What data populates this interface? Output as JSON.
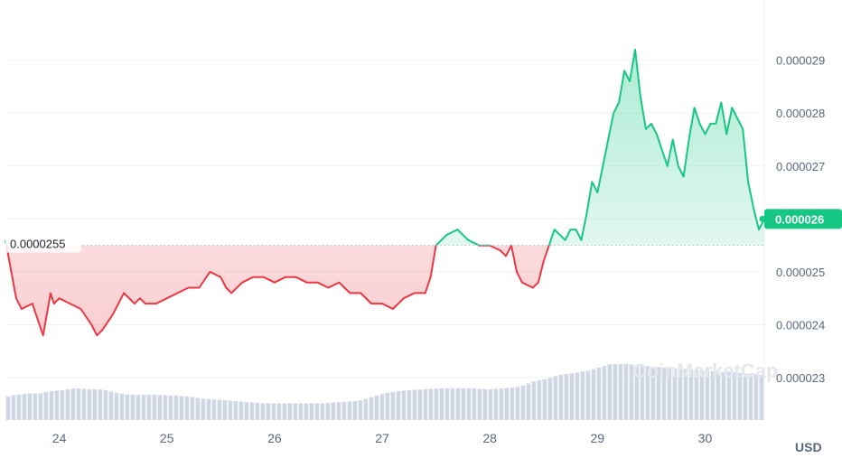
{
  "chart_data": {
    "type": "area",
    "xlabel": "",
    "ylabel": "",
    "unit_label": "USD",
    "watermark": "CoinMarketCap",
    "categories": [
      "24",
      "25",
      "26",
      "27",
      "28",
      "29",
      "30"
    ],
    "x_range": [
      23.5,
      30.55
    ],
    "y_ticks": [
      "0.000023",
      "0.000024",
      "0.000025",
      "0.000026",
      "0.000027",
      "0.000028",
      "0.000029"
    ],
    "y_tick_values": [
      2.3e-05,
      2.4e-05,
      2.5e-05,
      2.6e-05,
      2.7e-05,
      2.8e-05,
      2.9e-05
    ],
    "ylim": [
      2.22e-05,
      3e-05
    ],
    "reference_line": {
      "value": 2.55e-05,
      "label": "0.0000255"
    },
    "current_price": {
      "value": 2.6e-05,
      "label": "0.000026"
    },
    "grid": true,
    "colors": {
      "up": "#16c784",
      "down": "#ea3943",
      "volume": "#cfd6e4",
      "grid": "#eff2f5"
    },
    "series": [
      {
        "x": [
          23.5,
          23.6,
          23.65,
          23.75,
          23.85,
          23.92,
          23.95,
          24.0,
          24.1,
          24.2,
          24.3,
          24.35,
          24.4,
          24.5,
          24.6,
          24.7,
          24.75,
          24.8,
          24.9,
          25.0,
          25.1,
          25.2,
          25.3,
          25.4,
          25.5,
          25.55,
          25.6,
          25.7,
          25.8,
          25.9,
          26.0,
          26.1,
          26.2,
          26.3,
          26.4,
          26.5,
          26.6,
          26.7,
          26.8,
          26.9,
          27.0,
          27.1,
          27.2,
          27.3,
          27.4,
          27.45,
          27.5,
          27.6,
          27.7,
          27.8,
          27.9,
          28.0,
          28.1,
          28.15,
          28.2,
          28.25,
          28.3,
          28.4,
          28.45,
          28.5,
          28.55,
          28.6,
          28.65,
          28.7,
          28.75,
          28.8,
          28.85,
          28.9,
          28.95,
          29.0,
          29.05,
          29.1,
          29.15,
          29.2,
          29.25,
          29.3,
          29.35,
          29.4,
          29.45,
          29.5,
          29.55,
          29.6,
          29.65,
          29.7,
          29.75,
          29.8,
          29.85,
          29.9,
          29.95,
          30.0,
          30.05,
          30.1,
          30.15,
          30.2,
          30.25,
          30.3,
          30.35,
          30.4,
          30.45,
          30.5,
          30.55
        ],
        "values": [
          2.56e-05,
          2.45e-05,
          2.43e-05,
          2.44e-05,
          2.38e-05,
          2.46e-05,
          2.44e-05,
          2.45e-05,
          2.44e-05,
          2.43e-05,
          2.4e-05,
          2.38e-05,
          2.39e-05,
          2.42e-05,
          2.46e-05,
          2.44e-05,
          2.45e-05,
          2.44e-05,
          2.44e-05,
          2.45e-05,
          2.46e-05,
          2.47e-05,
          2.47e-05,
          2.5e-05,
          2.49e-05,
          2.47e-05,
          2.46e-05,
          2.48e-05,
          2.49e-05,
          2.49e-05,
          2.48e-05,
          2.49e-05,
          2.49e-05,
          2.48e-05,
          2.48e-05,
          2.47e-05,
          2.48e-05,
          2.46e-05,
          2.46e-05,
          2.44e-05,
          2.44e-05,
          2.43e-05,
          2.45e-05,
          2.46e-05,
          2.46e-05,
          2.49e-05,
          2.55e-05,
          2.57e-05,
          2.58e-05,
          2.56e-05,
          2.55e-05,
          2.55e-05,
          2.54e-05,
          2.53e-05,
          2.55e-05,
          2.5e-05,
          2.48e-05,
          2.47e-05,
          2.48e-05,
          2.52e-05,
          2.55e-05,
          2.58e-05,
          2.57e-05,
          2.56e-05,
          2.58e-05,
          2.58e-05,
          2.56e-05,
          2.61e-05,
          2.67e-05,
          2.65e-05,
          2.7e-05,
          2.75e-05,
          2.8e-05,
          2.82e-05,
          2.88e-05,
          2.86e-05,
          2.92e-05,
          2.83e-05,
          2.77e-05,
          2.78e-05,
          2.76e-05,
          2.73e-05,
          2.7e-05,
          2.75e-05,
          2.7e-05,
          2.68e-05,
          2.75e-05,
          2.81e-05,
          2.78e-05,
          2.76e-05,
          2.78e-05,
          2.78e-05,
          2.82e-05,
          2.76e-05,
          2.81e-05,
          2.79e-05,
          2.77e-05,
          2.67e-05,
          2.62e-05,
          2.58e-05,
          2.6e-05
        ]
      }
    ],
    "volume_values": [
      0.42,
      0.45,
      0.46,
      0.48,
      0.47,
      0.5,
      0.52,
      0.53,
      0.55,
      0.57,
      0.56,
      0.55,
      0.55,
      0.53,
      0.5,
      0.47,
      0.45,
      0.45,
      0.45,
      0.45,
      0.45,
      0.44,
      0.44,
      0.43,
      0.42,
      0.4,
      0.38,
      0.37,
      0.36,
      0.35,
      0.34,
      0.33,
      0.32,
      0.31,
      0.3,
      0.3,
      0.3,
      0.3,
      0.3,
      0.3,
      0.3,
      0.3,
      0.3,
      0.31,
      0.32,
      0.33,
      0.34,
      0.36,
      0.4,
      0.44,
      0.48,
      0.5,
      0.52,
      0.53,
      0.54,
      0.55,
      0.56,
      0.56,
      0.57,
      0.57,
      0.57,
      0.57,
      0.56,
      0.55,
      0.55,
      0.56,
      0.57,
      0.58,
      0.6,
      0.65,
      0.7,
      0.72,
      0.75,
      0.8,
      0.82,
      0.84,
      0.86,
      0.88,
      0.92,
      0.96,
      1.0,
      1.0,
      1.0,
      0.99,
      0.98,
      0.96,
      0.95,
      0.94,
      0.93,
      0.92,
      0.91,
      0.9,
      0.89,
      0.88,
      0.87,
      0.86,
      0.85,
      0.84,
      0.83,
      0.82,
      0.81
    ]
  }
}
